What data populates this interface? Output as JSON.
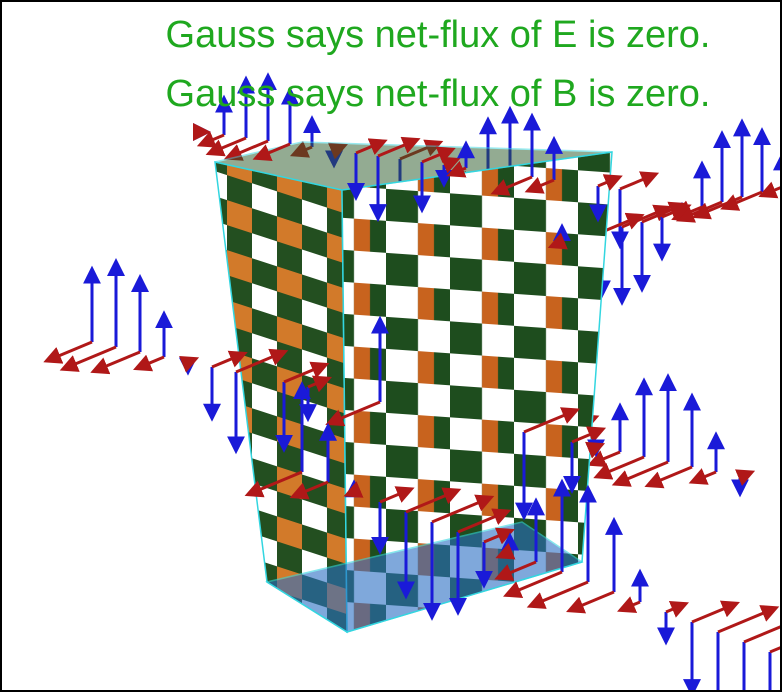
{
  "captions": {
    "e_field": "Gauss says net-flux of E is zero.",
    "b_field": "Gauss says net-flux of B is zero."
  }
}
